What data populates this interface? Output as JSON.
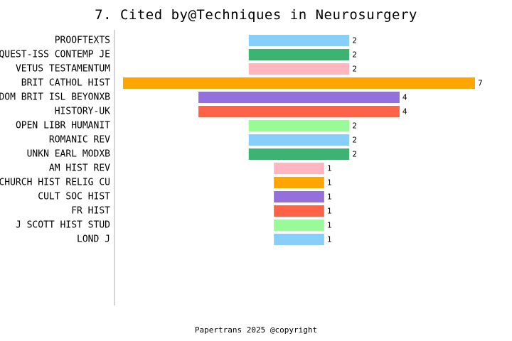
{
  "chart_data": {
    "type": "bar",
    "orientation": "horizontal",
    "layout": "centered-diverging",
    "title": "7. Cited by@Techniques in Neurosurgery",
    "categories": [
      "PROOFTEXTS",
      "QUEST-ISS CONTEMP JE",
      "VETUS TESTAMENTUM",
      "BRIT CATHOL HIST",
      "DOM BRIT ISL BEYONXB",
      "HISTORY-UK",
      "OPEN LIBR HUMANIT",
      "ROMANIC REV",
      "UNKN EARL MODXB",
      "AM HIST REV",
      "CHURCH HIST RELIG CU",
      "CULT SOC HIST",
      "FR HIST",
      "J SCOTT HIST STUD",
      "LOND J"
    ],
    "values": [
      2,
      2,
      2,
      7,
      4,
      4,
      2,
      2,
      2,
      1,
      1,
      1,
      1,
      1,
      1
    ],
    "colors": [
      "#87CEFA",
      "#3CB371",
      "#FFB6C1",
      "#FFA500",
      "#9370DB",
      "#FF6347",
      "#98FB98",
      "#87CEFA",
      "#3CB371",
      "#FFB6C1",
      "#FFA500",
      "#9370DB",
      "#FF6347",
      "#98FB98",
      "#87CEFA"
    ],
    "xlim": [
      0,
      7
    ],
    "grid": false,
    "legend": "none"
  },
  "footer": "Papertrans 2025 @copyright"
}
